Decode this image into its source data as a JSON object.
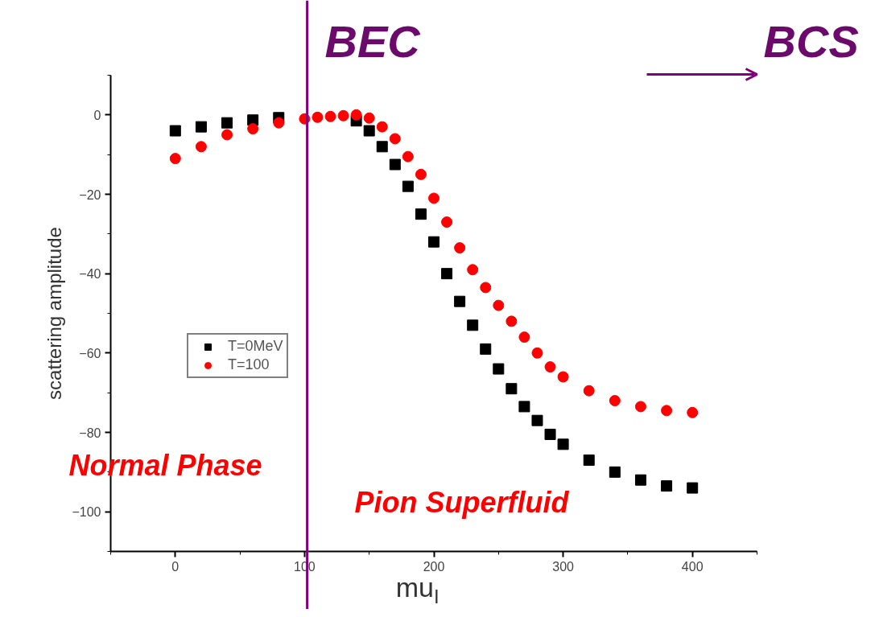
{
  "chart_data": {
    "type": "scatter",
    "xlabel": "mu$_{I}$",
    "ylabel": "scattering amplitude",
    "xlim": [
      -50,
      450
    ],
    "xticks": [
      0,
      100,
      200,
      300,
      400
    ],
    "ylim": [
      -110,
      10
    ],
    "yticks": [
      -100,
      -80,
      -60,
      -40,
      -20,
      0
    ],
    "grid": false,
    "legend": "left",
    "series": [
      {
        "name": "T=0MeV",
        "color": "#000000",
        "marker": "square",
        "x": [
          0,
          20,
          40,
          60,
          80,
          100,
          110,
          120,
          130,
          140,
          150,
          160,
          170,
          180,
          190,
          200,
          210,
          220,
          230,
          240,
          250,
          260,
          270,
          280,
          290,
          300,
          320,
          340,
          360,
          380,
          400
        ],
        "values": [
          -4,
          -3,
          -2,
          -1.3,
          -0.7,
          null,
          null,
          null,
          null,
          -1.5,
          -4,
          -8,
          -12.5,
          -18,
          -25,
          -32,
          -40,
          -47,
          -53,
          -59,
          -64,
          -69,
          -73.5,
          -77,
          -80.5,
          -83,
          -87,
          -90,
          -92,
          -93.5,
          -94
        ]
      },
      {
        "name": "T=100",
        "color": "#ff0000",
        "marker": "circle",
        "x": [
          0,
          20,
          40,
          60,
          80,
          100,
          110,
          120,
          130,
          140,
          150,
          160,
          170,
          180,
          190,
          200,
          210,
          220,
          230,
          240,
          250,
          260,
          270,
          280,
          290,
          300,
          320,
          340,
          360,
          380,
          400
        ],
        "values": [
          -11,
          -8,
          -5,
          -3.5,
          -2,
          -1,
          -0.6,
          -0.4,
          -0.2,
          0,
          -0.8,
          -3,
          -6,
          -10.5,
          -15,
          -21,
          -27,
          -33.5,
          -39,
          -43.5,
          -48,
          -52,
          -56,
          -60,
          -63.5,
          -66,
          -69.5,
          -72,
          -73.5,
          -74.5,
          -75
        ]
      }
    ],
    "ref_lines": [
      {
        "axis": "x",
        "value": 102,
        "label": null,
        "color": "#800080"
      }
    ],
    "annotations": [
      "BEC",
      "BCS",
      "Normal Phase",
      "Pion Superfluid"
    ]
  }
}
